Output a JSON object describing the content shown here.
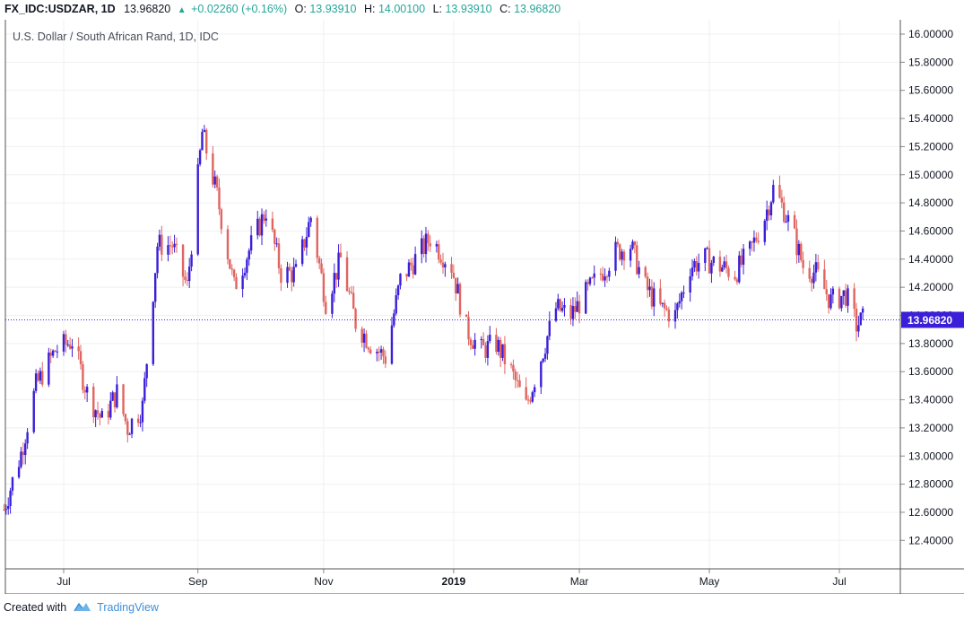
{
  "header": {
    "symbol": "FX_IDC:USDZAR, 1D",
    "price": "13.96820",
    "change": "+0.02260 (+0.16%)",
    "o_label": "O:",
    "o_value": "13.93910",
    "h_label": "H:",
    "h_value": "14.00100",
    "l_label": "L:",
    "l_value": "13.93910",
    "c_label": "C:",
    "c_value": "13.96820"
  },
  "footer": {
    "created_with": "Created with",
    "brand": "TradingView"
  },
  "colors": {
    "up": "#3a1fd8",
    "down": "#e06560",
    "grid": "#eef0f3",
    "last_price_bg": "#3a1fd8",
    "header_up": "#26a69a"
  },
  "chart_data": {
    "type": "candlestick",
    "title": "U.S. Dollar / South African Rand, 1D, IDC",
    "last_price": 13.9682,
    "last_price_label": "13.96820",
    "ylim": [
      12.2,
      16.1
    ],
    "y_ticks": [
      {
        "value": 16.0,
        "label": "16.00000"
      },
      {
        "value": 15.8,
        "label": "15.80000"
      },
      {
        "value": 15.6,
        "label": "15.60000"
      },
      {
        "value": 15.4,
        "label": "15.40000"
      },
      {
        "value": 15.2,
        "label": "15.20000"
      },
      {
        "value": 15.0,
        "label": "15.00000"
      },
      {
        "value": 14.8,
        "label": "14.80000"
      },
      {
        "value": 14.6,
        "label": "14.60000"
      },
      {
        "value": 14.4,
        "label": "14.40000"
      },
      {
        "value": 14.2,
        "label": "14.20000"
      },
      {
        "value": 14.0,
        "label": "14.00000"
      },
      {
        "value": 13.8,
        "label": "13.80000"
      },
      {
        "value": 13.6,
        "label": "13.60000"
      },
      {
        "value": 13.4,
        "label": "13.40000"
      },
      {
        "value": 13.2,
        "label": "13.20000"
      },
      {
        "value": 13.0,
        "label": "13.00000"
      },
      {
        "value": 12.8,
        "label": "12.80000"
      },
      {
        "value": 12.6,
        "label": "12.60000"
      },
      {
        "value": 12.4,
        "label": "12.40000"
      }
    ],
    "x_ticks": [
      {
        "label": "Jul",
        "x": "2018-07-02",
        "bold": false
      },
      {
        "label": "Sep",
        "x": "2018-09-03",
        "bold": false
      },
      {
        "label": "Nov",
        "x": "2018-11-01",
        "bold": false
      },
      {
        "label": "2019",
        "x": "2019-01-01",
        "bold": true
      },
      {
        "label": "Mar",
        "x": "2019-03-01",
        "bold": false
      },
      {
        "label": "May",
        "x": "2019-05-01",
        "bold": false
      },
      {
        "label": "Jul",
        "x": "2019-07-01",
        "bold": false
      }
    ],
    "anchors": [
      {
        "x": "2018-06-04",
        "y": 12.62
      },
      {
        "x": "2018-06-12",
        "y": 13.02
      },
      {
        "x": "2018-06-19",
        "y": 13.5
      },
      {
        "x": "2018-06-28",
        "y": 13.75
      },
      {
        "x": "2018-07-06",
        "y": 13.82
      },
      {
        "x": "2018-07-13",
        "y": 13.45
      },
      {
        "x": "2018-07-20",
        "y": 13.25
      },
      {
        "x": "2018-07-27",
        "y": 13.45
      },
      {
        "x": "2018-08-01",
        "y": 13.2
      },
      {
        "x": "2018-08-08",
        "y": 13.35
      },
      {
        "x": "2018-08-15",
        "y": 14.5
      },
      {
        "x": "2018-08-22",
        "y": 14.5
      },
      {
        "x": "2018-08-29",
        "y": 14.2
      },
      {
        "x": "2018-09-05",
        "y": 15.3
      },
      {
        "x": "2018-09-12",
        "y": 14.85
      },
      {
        "x": "2018-09-20",
        "y": 14.2
      },
      {
        "x": "2018-09-28",
        "y": 14.5
      },
      {
        "x": "2018-10-05",
        "y": 14.75
      },
      {
        "x": "2018-10-12",
        "y": 14.3
      },
      {
        "x": "2018-10-19",
        "y": 14.3
      },
      {
        "x": "2018-10-26",
        "y": 14.7
      },
      {
        "x": "2018-11-02",
        "y": 14.1
      },
      {
        "x": "2018-11-09",
        "y": 14.4
      },
      {
        "x": "2018-11-16",
        "y": 13.95
      },
      {
        "x": "2018-11-23",
        "y": 13.8
      },
      {
        "x": "2018-11-30",
        "y": 13.7
      },
      {
        "x": "2018-12-07",
        "y": 14.25
      },
      {
        "x": "2018-12-14",
        "y": 14.4
      },
      {
        "x": "2018-12-21",
        "y": 14.55
      },
      {
        "x": "2018-12-31",
        "y": 14.35
      },
      {
        "x": "2019-01-07",
        "y": 13.9
      },
      {
        "x": "2019-01-14",
        "y": 13.75
      },
      {
        "x": "2019-01-21",
        "y": 13.8
      },
      {
        "x": "2019-01-28",
        "y": 13.6
      },
      {
        "x": "2019-02-04",
        "y": 13.35
      },
      {
        "x": "2019-02-11",
        "y": 13.7
      },
      {
        "x": "2019-02-18",
        "y": 14.05
      },
      {
        "x": "2019-02-25",
        "y": 14.0
      },
      {
        "x": "2019-03-04",
        "y": 14.15
      },
      {
        "x": "2019-03-11",
        "y": 14.3
      },
      {
        "x": "2019-03-18",
        "y": 14.45
      },
      {
        "x": "2019-03-25",
        "y": 14.5
      },
      {
        "x": "2019-04-01",
        "y": 14.2
      },
      {
        "x": "2019-04-08",
        "y": 14.05
      },
      {
        "x": "2019-04-15",
        "y": 14.0
      },
      {
        "x": "2019-04-22",
        "y": 14.35
      },
      {
        "x": "2019-04-29",
        "y": 14.4
      },
      {
        "x": "2019-05-06",
        "y": 14.35
      },
      {
        "x": "2019-05-13",
        "y": 14.3
      },
      {
        "x": "2019-05-20",
        "y": 14.45
      },
      {
        "x": "2019-05-27",
        "y": 14.7
      },
      {
        "x": "2019-05-31",
        "y": 14.9
      },
      {
        "x": "2019-06-05",
        "y": 14.75
      },
      {
        "x": "2019-06-10",
        "y": 14.55
      },
      {
        "x": "2019-06-14",
        "y": 14.35
      },
      {
        "x": "2019-06-20",
        "y": 14.3
      },
      {
        "x": "2019-06-27",
        "y": 14.1
      },
      {
        "x": "2019-07-04",
        "y": 14.15
      },
      {
        "x": "2019-07-09",
        "y": 13.93
      },
      {
        "x": "2019-07-12",
        "y": 13.97
      }
    ],
    "grid": true
  }
}
